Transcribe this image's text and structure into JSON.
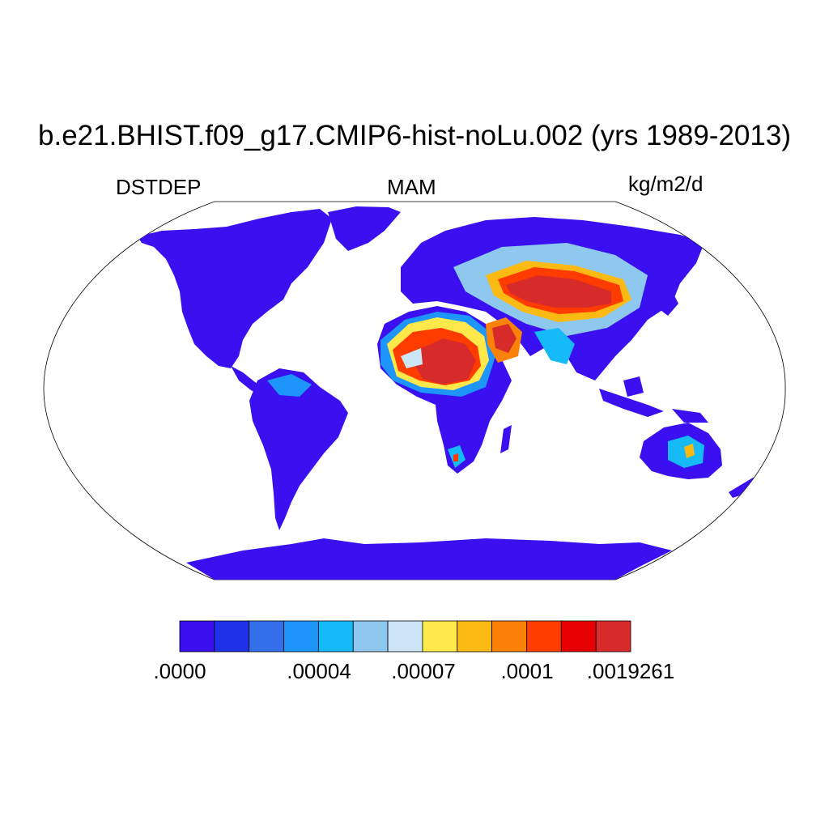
{
  "title": "b.e21.BHIST.f09_g17.CMIP6-hist-noLu.002 (yrs 1989-2013)",
  "left_label": "DSTDEP",
  "center_label": "MAM",
  "right_label": "kg/m2/d",
  "colorbar": {
    "colors": [
      "#3a10f0",
      "#1e32ea",
      "#3370ea",
      "#1e95fa",
      "#16baf7",
      "#8ec8ee",
      "#cce6f8",
      "#ffe84a",
      "#fbb914",
      "#fb8208",
      "#fe3c00",
      "#e60000",
      "#d72b2b"
    ],
    "labels": [
      ".0000",
      ".00004",
      ".00007",
      ".0001",
      ".0019261"
    ]
  },
  "map": {
    "projection": "robinson",
    "land_base_color": "#3a10f0",
    "dust_hotspots": [
      "Sahara",
      "Arabian Peninsula",
      "Central Asia",
      "Taklimakan-Gobi",
      "Thar",
      "Central Australia",
      "Namib-Kalahari"
    ]
  }
}
